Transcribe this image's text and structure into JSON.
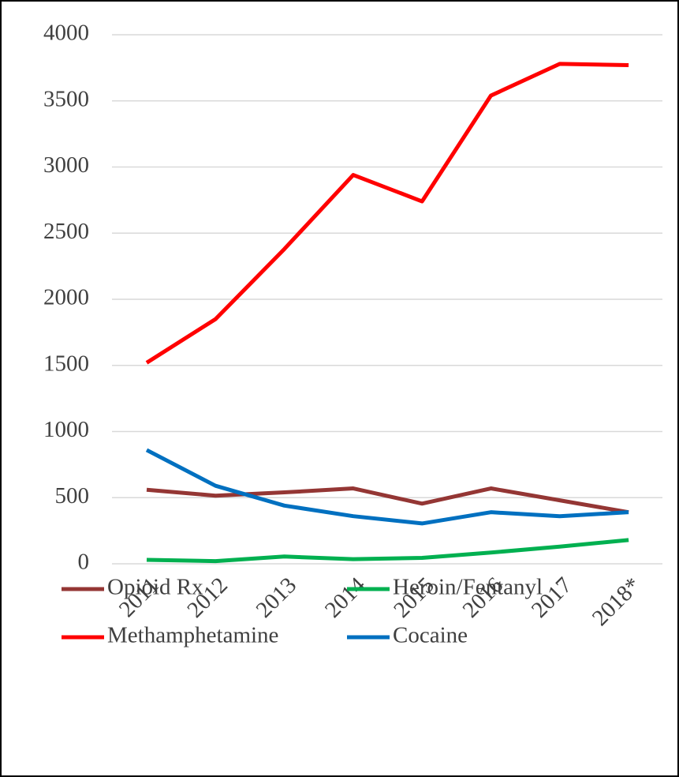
{
  "chart_data": {
    "type": "line",
    "categories": [
      "2011",
      "2012",
      "2013",
      "2014",
      "2015",
      "2016",
      "2017",
      "2018*"
    ],
    "series": [
      {
        "name": "Opioid Rx",
        "color": "#943634",
        "values": [
          560,
          515,
          540,
          570,
          455,
          570,
          480,
          390
        ]
      },
      {
        "name": "Heroin/Fentanyl",
        "color": "#00b050",
        "values": [
          30,
          20,
          55,
          35,
          45,
          85,
          130,
          180
        ]
      },
      {
        "name": "Methamphetamine",
        "color": "#ff0000",
        "values": [
          1520,
          1850,
          2380,
          2940,
          2740,
          3540,
          3780,
          3770
        ]
      },
      {
        "name": "Cocaine",
        "color": "#0070c0",
        "values": [
          860,
          590,
          440,
          360,
          305,
          390,
          360,
          390
        ]
      }
    ],
    "ylim": [
      0,
      4000
    ],
    "yticks": [
      0,
      500,
      1000,
      1500,
      2000,
      2500,
      3000,
      3500,
      4000
    ],
    "grid": true,
    "legend": "bottom"
  }
}
